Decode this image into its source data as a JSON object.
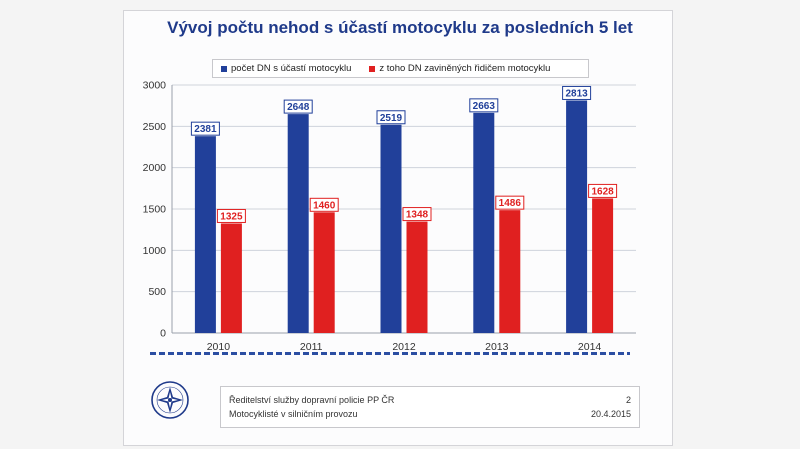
{
  "chart_data": {
    "type": "bar",
    "title": "Vývoj počtu nehod s účastí motocyklu za posledních 5 let",
    "categories": [
      "2010",
      "2011",
      "2012",
      "2013",
      "2014"
    ],
    "series": [
      {
        "name": "počet DN s účastí motocyklu",
        "color": "#21409a",
        "values": [
          2381,
          2648,
          2519,
          2663,
          2813
        ]
      },
      {
        "name": "z toho DN zaviněných řidičem motocyklu",
        "color": "#e02020",
        "values": [
          1325,
          1460,
          1348,
          1486,
          1628
        ]
      }
    ],
    "ylim": [
      0,
      3000
    ],
    "yticks": [
      0,
      500,
      1000,
      1500,
      2000,
      2500,
      3000
    ],
    "xlabel": "",
    "ylabel": "",
    "legend": "top"
  },
  "footer": {
    "org": "Ředitelství služby dopravní policie PP ČR",
    "subtitle": "Motocyklisté v silničním provozu",
    "page": "2",
    "date": "20.4.2015"
  },
  "logo": {
    "icon": "police-star-badge-icon"
  }
}
